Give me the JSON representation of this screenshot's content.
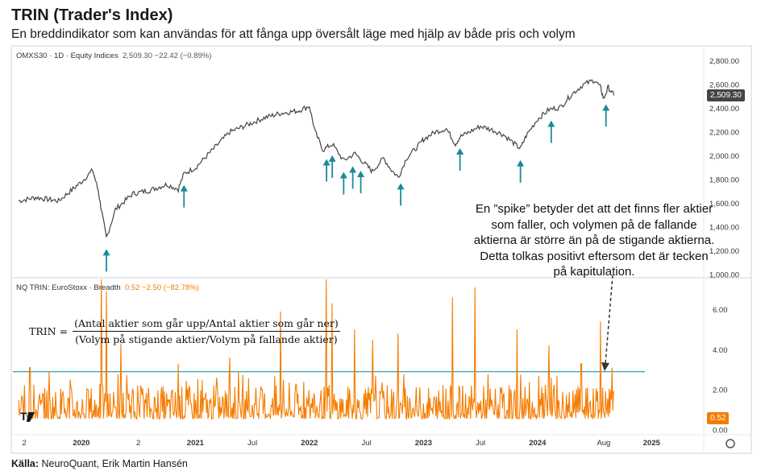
{
  "title": "TRIN (Trader's Index)",
  "subtitle": "En breddindikator som kan användas för att fånga upp översålt läge med hjälp av både pris och volym",
  "source_label": "Källa:",
  "source_text": "NeuroQuant, Erik Martin Hansén",
  "annotation": "En ”spike” betyder det att det finns fler aktier som faller, och volymen på de fallande aktierna är större än på de stigande aktierna. Detta tolkas positivt eftersom det är tecken på kapitulation.",
  "formula": {
    "lhs": "TRIN =",
    "numerator": "(Antal aktier som går upp/Antal aktier som går ner)",
    "denominator": "(Volym på stigande aktier/Volym på fallande aktier)"
  },
  "top_legend": {
    "symbol": "OMXS30 · 1D · Equity Indices",
    "values": "2,509.30  −22.42 (−0.89%)"
  },
  "bottom_legend": {
    "symbol": "NQ TRIN: EuroStoxx · Breadth",
    "values": "0.52  −2.50 (−82.78%)"
  },
  "colors": {
    "price_line": "#444444",
    "trin_line": "#f57c00",
    "arrow": "#1a8a9a",
    "threshold": "#1a9a9a"
  },
  "chart_data": [
    {
      "type": "line",
      "name": "OMXS30 · 1D · Equity Indices",
      "y_ticks": [
        "2,800.00",
        "2,600.00",
        "2,400.00",
        "2,200.00",
        "2,000.00",
        "1,800.00",
        "1,600.00",
        "1,400.00",
        "1,200.00",
        "1,000.00"
      ],
      "ylim": [
        1000,
        2900
      ],
      "last_value_label": "2,509.30",
      "last_value": 2509.3,
      "x": [
        2019.45,
        2019.6,
        2019.8,
        2020.0,
        2020.1,
        2020.15,
        2020.18,
        2020.22,
        2020.3,
        2020.45,
        2020.6,
        2020.75,
        2020.85,
        2020.9,
        2021.0,
        2021.15,
        2021.3,
        2021.45,
        2021.6,
        2021.75,
        2021.9,
        2022.0,
        2022.05,
        2022.12,
        2022.2,
        2022.3,
        2022.4,
        2022.5,
        2022.55,
        2022.65,
        2022.72,
        2022.78,
        2022.85,
        2022.95,
        2023.0,
        2023.1,
        2023.2,
        2023.28,
        2023.32,
        2023.4,
        2023.5,
        2023.6,
        2023.7,
        2023.8,
        2023.85,
        2023.9,
        2024.0,
        2024.1,
        2024.2,
        2024.3,
        2024.4,
        2024.5,
        2024.55,
        2024.58,
        2024.62,
        2024.67
      ],
      "values": [
        1620,
        1650,
        1620,
        1780,
        1880,
        1700,
        1520,
        1310,
        1550,
        1680,
        1710,
        1760,
        1720,
        1850,
        1900,
        2050,
        2200,
        2260,
        2320,
        2360,
        2380,
        2420,
        2200,
        2050,
        2100,
        1960,
        2020,
        1920,
        1870,
        1980,
        1880,
        1820,
        1980,
        2080,
        2140,
        2200,
        2230,
        2100,
        2160,
        2200,
        2250,
        2220,
        2180,
        2100,
        2060,
        2170,
        2310,
        2390,
        2410,
        2520,
        2600,
        2640,
        2580,
        2480,
        2580,
        2509.3
      ]
    },
    {
      "type": "line",
      "name": "NQ TRIN: EuroStoxx · Breadth",
      "y_ticks": [
        "6.00",
        "4.00",
        "2.00",
        "0.00"
      ],
      "ylim": [
        0,
        7.5
      ],
      "last_value_label": "0.52",
      "last_value": 0.52,
      "threshold": 2.9,
      "spikes": [
        {
          "x": 2019.55,
          "value": 3.1
        },
        {
          "x": 2019.72,
          "value": 2.9
        },
        {
          "x": 2020.18,
          "value": 7.5
        },
        {
          "x": 2020.22,
          "value": 6.9
        },
        {
          "x": 2020.35,
          "value": 4.3
        },
        {
          "x": 2020.85,
          "value": 3.3
        },
        {
          "x": 2021.3,
          "value": 3.6
        },
        {
          "x": 2021.75,
          "value": 5.9
        },
        {
          "x": 2022.15,
          "value": 7.5
        },
        {
          "x": 2022.2,
          "value": 6.3
        },
        {
          "x": 2022.4,
          "value": 5.0
        },
        {
          "x": 2022.55,
          "value": 4.5
        },
        {
          "x": 2022.78,
          "value": 4.8
        },
        {
          "x": 2023.25,
          "value": 6.6
        },
        {
          "x": 2023.45,
          "value": 7.1
        },
        {
          "x": 2023.82,
          "value": 5.0
        },
        {
          "x": 2024.1,
          "value": 4.2
        },
        {
          "x": 2024.38,
          "value": 3.3
        },
        {
          "x": 2024.55,
          "value": 5.4
        },
        {
          "x": 2024.65,
          "value": 3.1
        }
      ],
      "signal_arrows_x": [
        2020.22,
        2020.9,
        2022.15,
        2022.2,
        2022.3,
        2022.38,
        2022.45,
        2022.8,
        2023.32,
        2023.85,
        2024.12,
        2024.6
      ]
    }
  ],
  "x_axis": {
    "labels": [
      "2",
      "2020",
      "2",
      "2021",
      "Jul",
      "2022",
      "Jul",
      "2023",
      "Jul",
      "2024",
      "Aug",
      "2025"
    ],
    "positions": [
      2019.5,
      2020.0,
      2020.5,
      2021.0,
      2021.5,
      2022.0,
      2022.5,
      2023.0,
      2023.5,
      2024.0,
      2024.58,
      2025.0
    ]
  }
}
